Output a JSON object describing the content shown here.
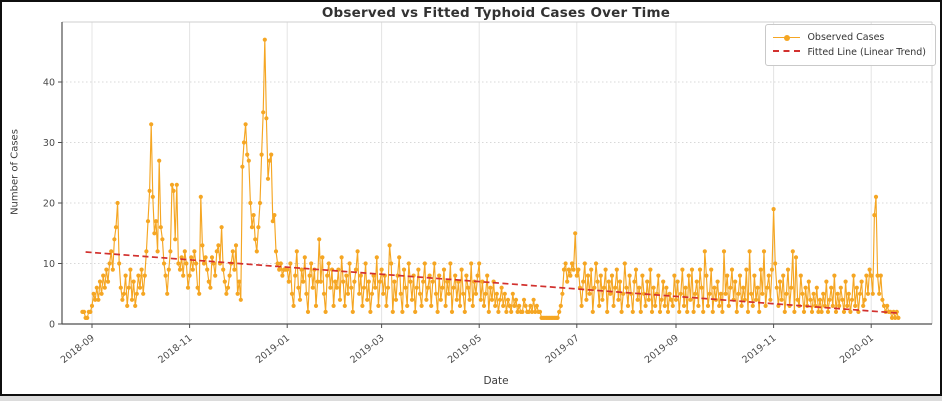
{
  "title": "Observed vs Fitted Typhoid Cases Over Time",
  "x_axis": {
    "label": "Date"
  },
  "y_axis": {
    "label": "Number of Cases"
  },
  "legend": {
    "items": [
      {
        "label": "Observed Cases",
        "swatch": "orange-line-with-marker"
      },
      {
        "label": "Fitted Line (Linear Trend)",
        "swatch": "red-dashed-line"
      }
    ]
  },
  "colors": {
    "observed": "#F5A623",
    "fitted": "#D2312E",
    "grid_vertical": "#e4e4e4",
    "grid_horizontal": "#d8d8d8",
    "spine_dark": "#4f4f4f",
    "spine_light": "#cfcfcf",
    "tick_text": "#4a4a4a"
  },
  "chart_data": {
    "type": "line",
    "title": "Observed vs Fitted Typhoid Cases Over Time",
    "xlabel": "Date",
    "ylabel": "Number of Cases",
    "x_start_date": "2018-08-26",
    "x_frequency": "daily",
    "ylim": [
      0,
      49
    ],
    "y_ticks": [
      0,
      10,
      20,
      30,
      40
    ],
    "x_ticks": [
      {
        "label": "2018-09",
        "day": 6
      },
      {
        "label": "2018-11",
        "day": 67
      },
      {
        "label": "2019-01",
        "day": 128
      },
      {
        "label": "2019-03",
        "day": 187
      },
      {
        "label": "2019-05",
        "day": 248
      },
      {
        "label": "2019-07",
        "day": 309
      },
      {
        "label": "2019-09",
        "day": 371
      },
      {
        "label": "2019-11",
        "day": 432
      },
      {
        "label": "2020-01",
        "day": 493
      }
    ],
    "grid": true,
    "legend_position": "upper right",
    "series": [
      {
        "name": "Observed Cases",
        "style": "line+circle-marker",
        "color": "#F5A623",
        "values": [
          2,
          2,
          1,
          1,
          2,
          2,
          3,
          5,
          4,
          6,
          4,
          7,
          5,
          8,
          6,
          9,
          7,
          10,
          12,
          9,
          14,
          16,
          20,
          10,
          6,
          4,
          5,
          8,
          3,
          6,
          9,
          4,
          7,
          3,
          5,
          8,
          6,
          9,
          5,
          8,
          12,
          17,
          22,
          33,
          21,
          15,
          17,
          12,
          27,
          16,
          14,
          10,
          8,
          5,
          9,
          12,
          23,
          22,
          14,
          23,
          10,
          9,
          11,
          8,
          12,
          10,
          6,
          8,
          11,
          9,
          12,
          10,
          6,
          5,
          21,
          13,
          10,
          11,
          9,
          7,
          6,
          11,
          10,
          8,
          12,
          13,
          10,
          16,
          9,
          7,
          5,
          6,
          8,
          10,
          12,
          9,
          13,
          5,
          7,
          4,
          26,
          30,
          33,
          28,
          27,
          20,
          16,
          18,
          14,
          12,
          16,
          20,
          28,
          35,
          47,
          34,
          24,
          27,
          28,
          17,
          18,
          12,
          10,
          9,
          10,
          8,
          9,
          9,
          9,
          7,
          10,
          5,
          3,
          8,
          12,
          6,
          4,
          9,
          7,
          11,
          5,
          2,
          8,
          10,
          6,
          9,
          3,
          7,
          14,
          7,
          11,
          5,
          2,
          8,
          10,
          6,
          9,
          3,
          7,
          6,
          9,
          4,
          11,
          7,
          3,
          8,
          5,
          10,
          6,
          2,
          7,
          9,
          12,
          5,
          8,
          3,
          6,
          10,
          4,
          7,
          2,
          5,
          8,
          6,
          11,
          3,
          7,
          9,
          5,
          8,
          3,
          6,
          13,
          10,
          2,
          7,
          4,
          8,
          11,
          5,
          2,
          9,
          6,
          3,
          10,
          7,
          4,
          8,
          2,
          6,
          9,
          5,
          3,
          7,
          10,
          4,
          6,
          8,
          3,
          7,
          10,
          5,
          2,
          8,
          4,
          6,
          9,
          3,
          7,
          5,
          10,
          2,
          6,
          8,
          4,
          7,
          3,
          9,
          5,
          2,
          8,
          6,
          4,
          10,
          3,
          7,
          5,
          8,
          10,
          4,
          7,
          3,
          5,
          8,
          2,
          6,
          4,
          7,
          3,
          5,
          2,
          4,
          6,
          3,
          5,
          2,
          4,
          3,
          2,
          5,
          3,
          4,
          2,
          3,
          2,
          2,
          4,
          3,
          2,
          2,
          3,
          2,
          4,
          2,
          3,
          2,
          2,
          1,
          1,
          1,
          1,
          1,
          1,
          1,
          1,
          1,
          1,
          1,
          2,
          3,
          5,
          9,
          10,
          7,
          9,
          8,
          10,
          9,
          15,
          8,
          9,
          6,
          3,
          7,
          10,
          4,
          8,
          5,
          9,
          2,
          6,
          10,
          7,
          3,
          8,
          4,
          6,
          9,
          2,
          7,
          5,
          8,
          3,
          6,
          9,
          4,
          7,
          2,
          5,
          10,
          6,
          3,
          8,
          5,
          2,
          7,
          9,
          4,
          6,
          2,
          8,
          5,
          3,
          7,
          4,
          9,
          2,
          6,
          3,
          5,
          8,
          2,
          4,
          7,
          3,
          6,
          2,
          5,
          4,
          3,
          8,
          4,
          7,
          2,
          5,
          9,
          3,
          6,
          2,
          8,
          4,
          9,
          2,
          5,
          7,
          3,
          9,
          6,
          2,
          12,
          8,
          3,
          5,
          9,
          2,
          6,
          4,
          7,
          3,
          5,
          2,
          12,
          5,
          8,
          3,
          6,
          9,
          4,
          7,
          2,
          5,
          8,
          3,
          6,
          4,
          9,
          2,
          12,
          5,
          3,
          8,
          4,
          6,
          2,
          9,
          5,
          12,
          3,
          6,
          8,
          4,
          9,
          19,
          10,
          6,
          3,
          7,
          4,
          8,
          2,
          5,
          9,
          3,
          6,
          12,
          2,
          11,
          4,
          3,
          8,
          5,
          2,
          6,
          3,
          7,
          4,
          2,
          5,
          3,
          6,
          2,
          4,
          2,
          5,
          3,
          7,
          2,
          4,
          6,
          3,
          8,
          2,
          5,
          3,
          6,
          4,
          2,
          7,
          3,
          5,
          2,
          4,
          8,
          3,
          6,
          2,
          5,
          7,
          3,
          4,
          8,
          5,
          9,
          8,
          5,
          18,
          21,
          8,
          5,
          8,
          4,
          3,
          2,
          3,
          2,
          2,
          1,
          2,
          1,
          2,
          1
        ]
      },
      {
        "name": "Fitted Line (Linear Trend)",
        "style": "dashed",
        "color": "#D2312E",
        "trend": {
          "start_day": 2,
          "start_value": 11.9,
          "end_day": 510,
          "end_value": 1.8
        }
      }
    ]
  }
}
